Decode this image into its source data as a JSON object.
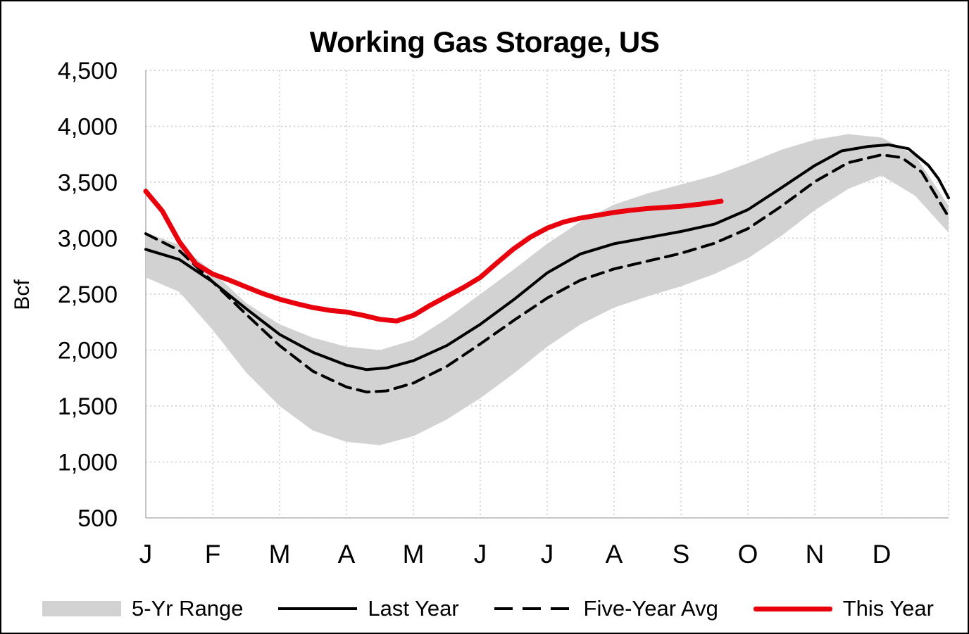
{
  "chart_data": {
    "type": "line",
    "title": "Working Gas Storage, US",
    "ylabel": "Bcf",
    "ylim": [
      500,
      4500
    ],
    "y_tick_step": 500,
    "y_tick_labels": [
      "500",
      "1,000",
      "1,500",
      "2,000",
      "2,500",
      "3,000",
      "3,500",
      "4,000",
      "4,500"
    ],
    "x_months": [
      "J",
      "F",
      "M",
      "A",
      "M",
      "J",
      "J",
      "A",
      "S",
      "O",
      "N",
      "D"
    ],
    "xlim_months": [
      0,
      12
    ],
    "grid": true,
    "legend_position": "bottom",
    "band": {
      "name": "5-Yr Range",
      "color": "#d2d2d2",
      "x": [
        0,
        0.5,
        1,
        1.5,
        2,
        2.5,
        3,
        3.5,
        4,
        4.5,
        5,
        5.5,
        6,
        6.5,
        7,
        7.5,
        8,
        8.5,
        9,
        9.5,
        10,
        10.5,
        11,
        11.5,
        12
      ],
      "high": [
        3050,
        2940,
        2700,
        2420,
        2230,
        2110,
        2030,
        2000,
        2090,
        2280,
        2500,
        2720,
        2950,
        3150,
        3300,
        3400,
        3480,
        3560,
        3670,
        3790,
        3880,
        3930,
        3900,
        3740,
        3290
      ],
      "low": [
        2650,
        2520,
        2180,
        1800,
        1500,
        1280,
        1180,
        1150,
        1230,
        1380,
        1570,
        1790,
        2030,
        2230,
        2380,
        2480,
        2570,
        2680,
        2820,
        3020,
        3250,
        3440,
        3560,
        3380,
        3050
      ]
    },
    "series": [
      {
        "name": "Last Year",
        "color": "#000000",
        "style": "solid",
        "width": 4,
        "x": [
          0,
          0.5,
          1,
          1.5,
          2,
          2.5,
          3,
          3.3,
          3.6,
          4,
          4.5,
          5,
          5.5,
          6,
          6.5,
          7,
          7.5,
          8,
          8.5,
          9,
          9.5,
          10,
          10.4,
          10.8,
          11.1,
          11.4,
          11.7,
          11.85,
          12
        ],
        "values": [
          2900,
          2810,
          2610,
          2370,
          2140,
          1980,
          1865,
          1825,
          1840,
          1905,
          2040,
          2230,
          2450,
          2690,
          2860,
          2950,
          3005,
          3060,
          3125,
          3255,
          3450,
          3650,
          3780,
          3820,
          3835,
          3800,
          3650,
          3530,
          3360
        ]
      },
      {
        "name": "Five-Year Avg",
        "color": "#000000",
        "style": "dashed",
        "width": 4,
        "x": [
          0,
          0.5,
          1,
          1.5,
          2,
          2.5,
          3,
          3.3,
          3.6,
          4,
          4.5,
          5,
          5.5,
          6,
          6.5,
          7,
          7.5,
          8,
          8.5,
          9,
          9.5,
          10,
          10.5,
          11,
          11.3,
          11.6,
          12
        ],
        "values": [
          3040,
          2890,
          2610,
          2320,
          2040,
          1810,
          1670,
          1625,
          1635,
          1705,
          1855,
          2055,
          2265,
          2465,
          2625,
          2725,
          2795,
          2865,
          2955,
          3085,
          3285,
          3505,
          3675,
          3745,
          3720,
          3590,
          3190
        ]
      },
      {
        "name": "This Year",
        "color": "#e8000d",
        "style": "solid",
        "width": 7,
        "x": [
          0,
          0.25,
          0.5,
          0.75,
          1,
          1.25,
          1.5,
          1.75,
          2,
          2.25,
          2.5,
          2.75,
          3,
          3.25,
          3.5,
          3.75,
          4,
          4.25,
          4.5,
          4.75,
          5,
          5.25,
          5.5,
          5.75,
          6,
          6.25,
          6.5,
          6.75,
          7,
          7.25,
          7.5,
          7.75,
          8,
          8.3,
          8.6
        ],
        "values": [
          3420,
          3240,
          2970,
          2770,
          2680,
          2625,
          2565,
          2505,
          2455,
          2415,
          2380,
          2355,
          2340,
          2310,
          2275,
          2260,
          2310,
          2400,
          2480,
          2560,
          2650,
          2780,
          2905,
          3010,
          3090,
          3145,
          3180,
          3205,
          3230,
          3250,
          3265,
          3275,
          3285,
          3305,
          3330
        ]
      }
    ]
  }
}
